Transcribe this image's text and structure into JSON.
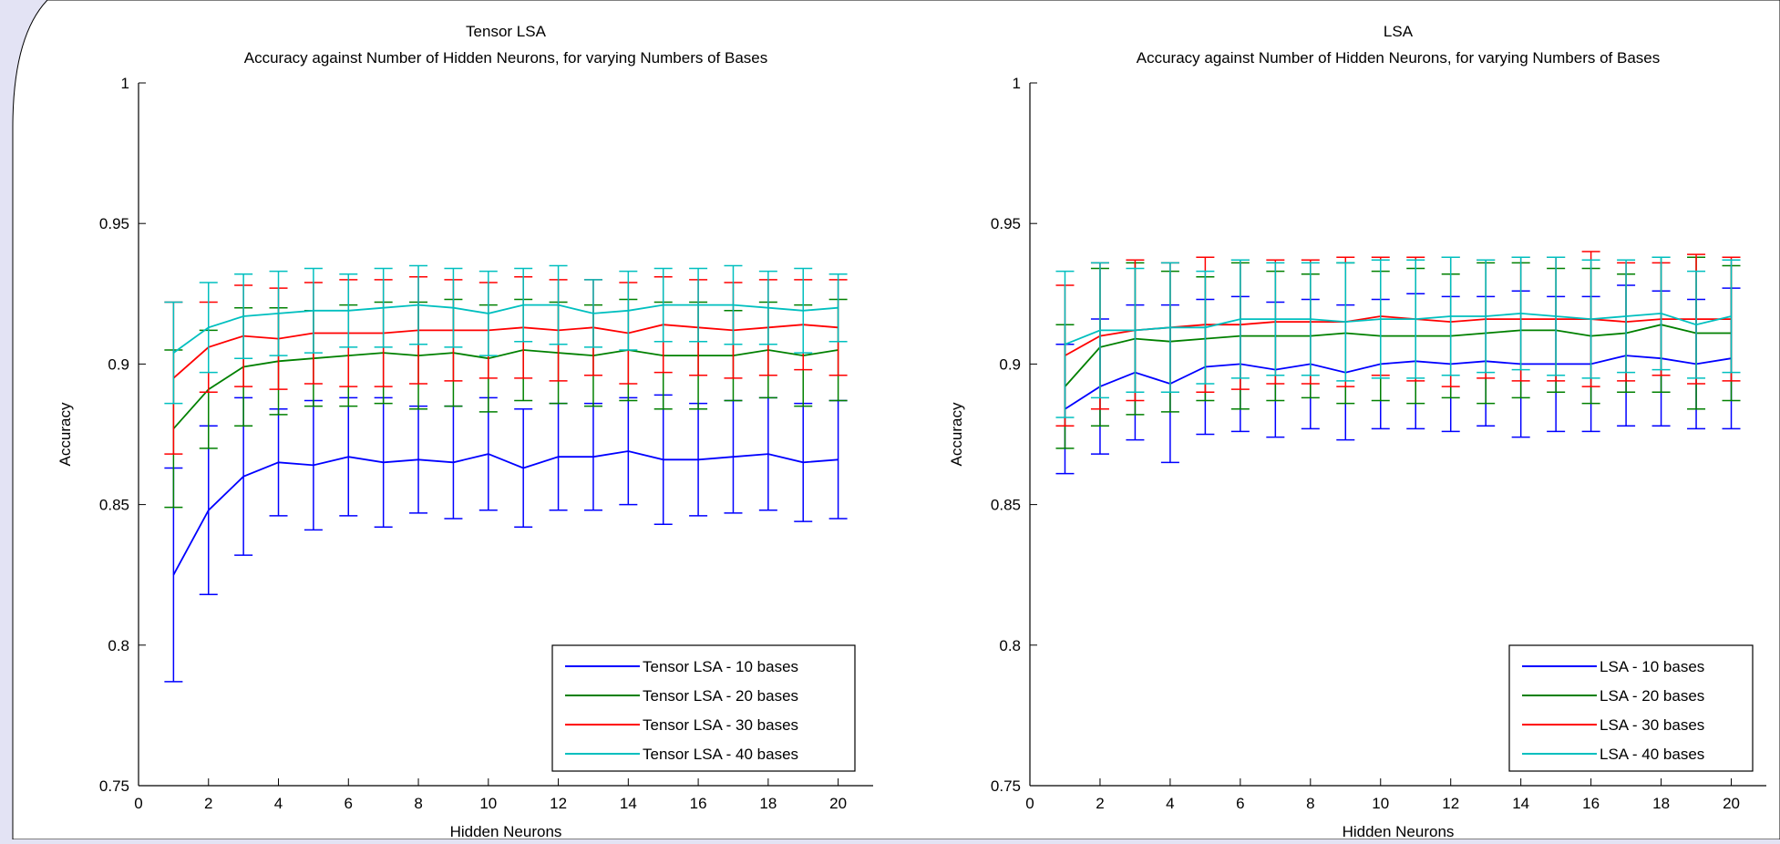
{
  "colors": {
    "background": "#e3e3f4",
    "plot_area": "#ffffff",
    "series": [
      "#0000ff",
      "#008000",
      "#ff0000",
      "#00bfbf"
    ]
  },
  "chart_data": [
    {
      "type": "line",
      "title": "Tensor LSA",
      "subtitle": "Accuracy against Number of Hidden Neurons, for varying Numbers of Bases",
      "xlabel": "Hidden Neurons",
      "ylabel": "Accuracy",
      "xlim": [
        0,
        21
      ],
      "ylim": [
        0.75,
        1
      ],
      "xticks": [
        0,
        2,
        4,
        6,
        8,
        10,
        12,
        14,
        16,
        18,
        20
      ],
      "yticks": [
        0.75,
        0.8,
        0.85,
        0.9,
        0.95,
        1
      ],
      "yticklabels": [
        "0.75",
        "0.8",
        "0.85",
        "0.9",
        "0.95",
        "1"
      ],
      "grid": false,
      "legend_position": "bottom-right",
      "error_bars": true,
      "x": [
        1,
        2,
        3,
        4,
        5,
        6,
        7,
        8,
        9,
        10,
        11,
        12,
        13,
        14,
        15,
        16,
        17,
        18,
        19,
        20
      ],
      "series": [
        {
          "name": "Tensor LSA - 10 bases",
          "values": [
            0.825,
            0.848,
            0.86,
            0.865,
            0.864,
            0.867,
            0.865,
            0.866,
            0.865,
            0.868,
            0.863,
            0.867,
            0.867,
            0.869,
            0.866,
            0.866,
            0.867,
            0.868,
            0.865,
            0.866
          ],
          "errors": [
            0.038,
            0.03,
            0.028,
            0.019,
            0.023,
            0.021,
            0.023,
            0.019,
            0.02,
            0.02,
            0.021,
            0.019,
            0.019,
            0.019,
            0.023,
            0.02,
            0.02,
            0.02,
            0.021,
            0.021
          ]
        },
        {
          "name": "Tensor LSA - 20 bases",
          "values": [
            0.877,
            0.891,
            0.899,
            0.901,
            0.902,
            0.903,
            0.904,
            0.903,
            0.904,
            0.902,
            0.905,
            0.904,
            0.903,
            0.905,
            0.903,
            0.903,
            0.903,
            0.905,
            0.903,
            0.905
          ],
          "errors": [
            0.028,
            0.021,
            0.021,
            0.019,
            0.017,
            0.018,
            0.018,
            0.019,
            0.019,
            0.019,
            0.018,
            0.018,
            0.018,
            0.018,
            0.019,
            0.019,
            0.016,
            0.017,
            0.018,
            0.018
          ]
        },
        {
          "name": "Tensor LSA - 30 bases",
          "values": [
            0.895,
            0.906,
            0.91,
            0.909,
            0.911,
            0.911,
            0.911,
            0.912,
            0.912,
            0.912,
            0.913,
            0.912,
            0.913,
            0.911,
            0.914,
            0.913,
            0.912,
            0.913,
            0.914,
            0.913
          ],
          "errors": [
            0.027,
            0.016,
            0.018,
            0.018,
            0.018,
            0.019,
            0.019,
            0.019,
            0.018,
            0.017,
            0.018,
            0.018,
            0.017,
            0.018,
            0.017,
            0.017,
            0.017,
            0.017,
            0.016,
            0.017
          ]
        },
        {
          "name": "Tensor LSA - 40 bases",
          "values": [
            0.904,
            0.913,
            0.917,
            0.918,
            0.919,
            0.919,
            0.92,
            0.921,
            0.92,
            0.918,
            0.921,
            0.921,
            0.918,
            0.919,
            0.921,
            0.921,
            0.921,
            0.92,
            0.919,
            0.92
          ],
          "errors": [
            0.018,
            0.016,
            0.015,
            0.015,
            0.015,
            0.013,
            0.014,
            0.014,
            0.014,
            0.015,
            0.013,
            0.014,
            0.012,
            0.014,
            0.013,
            0.013,
            0.014,
            0.013,
            0.015,
            0.012
          ]
        }
      ]
    },
    {
      "type": "line",
      "title": "LSA",
      "subtitle": "Accuracy against Number of Hidden Neurons, for varying Numbers of Bases",
      "xlabel": "Hidden Neurons",
      "ylabel": "Accuracy",
      "xlim": [
        0,
        21
      ],
      "ylim": [
        0.75,
        1
      ],
      "xticks": [
        0,
        2,
        4,
        6,
        8,
        10,
        12,
        14,
        16,
        18,
        20
      ],
      "yticks": [
        0.75,
        0.8,
        0.85,
        0.9,
        0.95,
        1
      ],
      "yticklabels": [
        "0.75",
        "0.8",
        "0.85",
        "0.9",
        "0.95",
        "1"
      ],
      "grid": false,
      "legend_position": "bottom-right",
      "error_bars": true,
      "x": [
        1,
        2,
        3,
        4,
        5,
        6,
        7,
        8,
        9,
        10,
        11,
        12,
        13,
        14,
        15,
        16,
        17,
        18,
        19,
        20
      ],
      "series": [
        {
          "name": "LSA - 10 bases",
          "values": [
            0.884,
            0.892,
            0.897,
            0.893,
            0.899,
            0.9,
            0.898,
            0.9,
            0.897,
            0.9,
            0.901,
            0.9,
            0.901,
            0.9,
            0.9,
            0.9,
            0.903,
            0.902,
            0.9,
            0.902
          ],
          "errors": [
            0.023,
            0.024,
            0.024,
            0.028,
            0.024,
            0.024,
            0.024,
            0.023,
            0.024,
            0.023,
            0.024,
            0.024,
            0.023,
            0.026,
            0.024,
            0.024,
            0.025,
            0.024,
            0.023,
            0.025
          ]
        },
        {
          "name": "LSA - 20 bases",
          "values": [
            0.892,
            0.906,
            0.909,
            0.908,
            0.909,
            0.91,
            0.91,
            0.91,
            0.911,
            0.91,
            0.91,
            0.91,
            0.911,
            0.912,
            0.912,
            0.91,
            0.911,
            0.914,
            0.911,
            0.911
          ],
          "errors": [
            0.022,
            0.028,
            0.027,
            0.025,
            0.022,
            0.026,
            0.023,
            0.022,
            0.025,
            0.023,
            0.024,
            0.022,
            0.025,
            0.024,
            0.022,
            0.024,
            0.021,
            0.024,
            0.027,
            0.024
          ]
        },
        {
          "name": "LSA - 30 bases",
          "values": [
            0.903,
            0.91,
            0.912,
            0.913,
            0.914,
            0.914,
            0.915,
            0.915,
            0.915,
            0.917,
            0.916,
            0.915,
            0.916,
            0.916,
            0.916,
            0.916,
            0.915,
            0.916,
            0.916,
            0.916
          ],
          "errors": [
            0.025,
            0.026,
            0.025,
            0.023,
            0.024,
            0.023,
            0.022,
            0.022,
            0.023,
            0.021,
            0.022,
            0.023,
            0.021,
            0.022,
            0.022,
            0.024,
            0.021,
            0.02,
            0.023,
            0.022
          ]
        },
        {
          "name": "LSA - 40 bases",
          "values": [
            0.907,
            0.912,
            0.912,
            0.913,
            0.913,
            0.916,
            0.916,
            0.916,
            0.915,
            0.916,
            0.916,
            0.917,
            0.917,
            0.918,
            0.917,
            0.916,
            0.917,
            0.918,
            0.914,
            0.917
          ],
          "errors": [
            0.026,
            0.024,
            0.022,
            0.023,
            0.02,
            0.021,
            0.02,
            0.02,
            0.021,
            0.021,
            0.021,
            0.021,
            0.02,
            0.02,
            0.021,
            0.021,
            0.02,
            0.02,
            0.019,
            0.02
          ]
        }
      ]
    }
  ]
}
